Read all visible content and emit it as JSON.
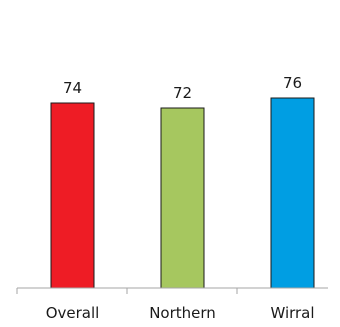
{
  "chart_data": {
    "type": "bar",
    "categories": [
      "Overall",
      "Northern",
      "Wirral"
    ],
    "values": [
      74,
      72,
      76
    ],
    "colors": [
      "#ee1c25",
      "#a6c75f",
      "#009ee3"
    ],
    "ylim": [
      0,
      100
    ],
    "grid": false,
    "legend": "none"
  }
}
